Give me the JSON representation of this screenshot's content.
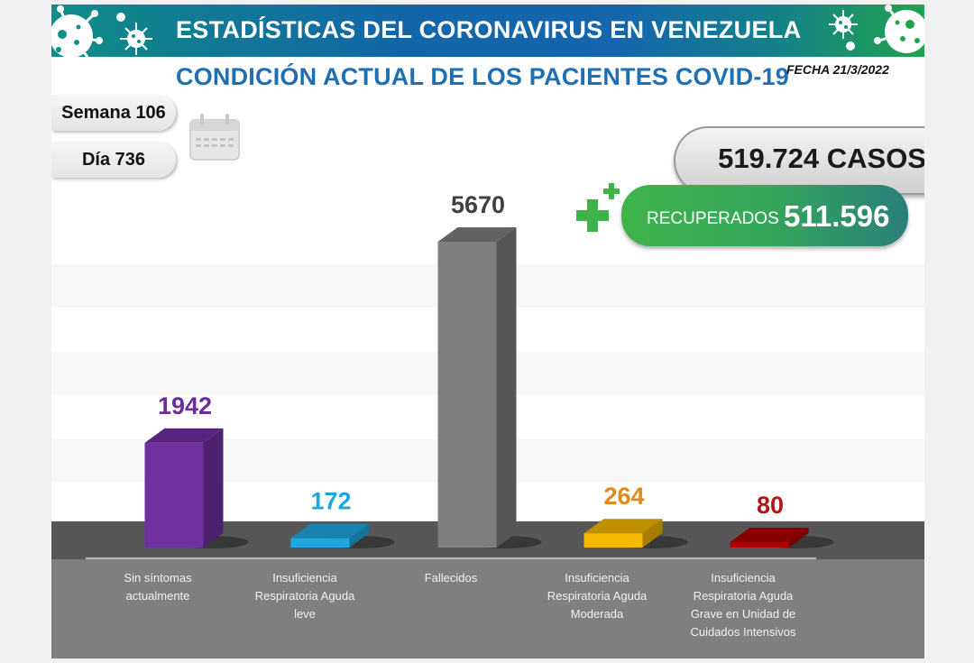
{
  "header": {
    "title": "ESTADÍSTICAS DEL CORONAVIRUS EN VENEZUELA",
    "subtitle": "CONDICIÓN ACTUAL DE LOS PACIENTES COVID-19",
    "fecha": "FECHA 21/3/2022"
  },
  "period": {
    "semana": "Semana 106",
    "dia": "Día 736"
  },
  "totals": {
    "casos": "519.724 CASOS",
    "recuperados_label": "RECUPERADOS",
    "recuperados_value": "511.596"
  },
  "icons": {
    "calendar": "calendar-icon",
    "virus": "virus-icon",
    "plus": "plus-icon"
  },
  "colors": {
    "banner_teal": "#0f8f8a",
    "banner_blue": "#1266a8",
    "banner_green": "#21a24e",
    "subtitle_blue": "#1f6fb5",
    "recuperados_green": "#3fb34a"
  },
  "chart_data": {
    "type": "bar",
    "title": "CONDICIÓN ACTUAL DE LOS PACIENTES COVID-19",
    "xlabel": "",
    "ylabel": "",
    "grid": false,
    "ylim": [
      0,
      5670
    ],
    "categories": [
      "Sin síntomas actualmente",
      "Insuficiencia Respiratoria Aguda leve",
      "Fallecidos",
      "Insuficiencia Respiratoria Aguda Moderada",
      "Insuficiencia Respiratoria Aguda Grave en Unidad de Cuidados Intensivos"
    ],
    "category_lines": [
      [
        "Sin síntomas",
        "actualmente"
      ],
      [
        "Insuficiencia",
        "Respiratoria Aguda",
        "leve"
      ],
      [
        "Fallecidos"
      ],
      [
        "Insuficiencia",
        "Respiratoria Aguda",
        "Moderada"
      ],
      [
        "Insuficiencia",
        "Respiratoria Aguda",
        "Grave en Unidad de",
        "Cuidados Intensivos"
      ]
    ],
    "values": [
      1942,
      172,
      5670,
      264,
      80
    ],
    "value_labels": [
      "1942",
      "172",
      "5670",
      "264",
      "80"
    ],
    "colors": [
      "#7030a0",
      "#1fa8e0",
      "#7f7f7f",
      "#f5b800",
      "#b00000"
    ],
    "label_colors": [
      "#6a2d9a",
      "#1ba6de",
      "#404040",
      "#e08a1e",
      "#b01818"
    ]
  }
}
